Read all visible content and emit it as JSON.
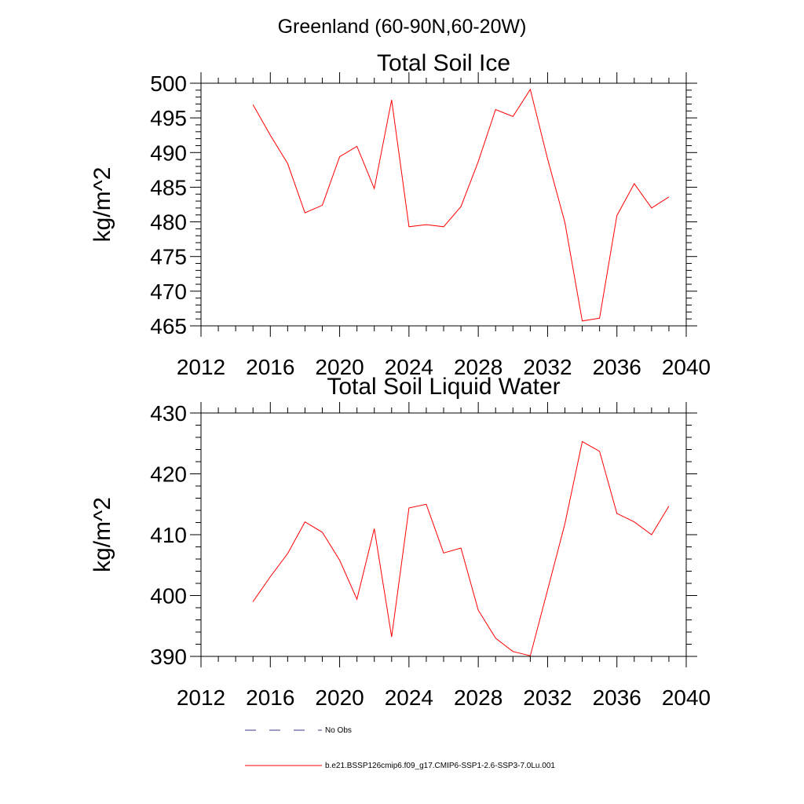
{
  "suptitle": "Greenland (60-90N,60-20W)",
  "legend": {
    "entries": [
      {
        "label": "No Obs",
        "color": "#3a3a8c",
        "dash": "dashed"
      },
      {
        "label": "b.e21.BSSP126cmip6.f09_g17.CMIP6-SSP1-2.6-SSP3-7.0Lu.001",
        "color": "#ff0000",
        "dash": "solid"
      }
    ]
  },
  "chart_data": [
    {
      "type": "line",
      "title": "Total Soil Ice",
      "xlabel": "",
      "ylabel": "kg/m^2",
      "xlim": [
        2012,
        2040
      ],
      "ylim": [
        465,
        500
      ],
      "xticks": [
        2012,
        2016,
        2020,
        2024,
        2028,
        2032,
        2036,
        2040
      ],
      "yticks": [
        465,
        470,
        475,
        480,
        485,
        490,
        495,
        500
      ],
      "grid": false,
      "series": [
        {
          "name": "b.e21.BSSP126cmip6.f09_g17.CMIP6-SSP1-2.6-SSP3-7.0Lu.001",
          "color": "#ff0000",
          "x": [
            2015,
            2016,
            2017,
            2018,
            2019,
            2020,
            2021,
            2022,
            2023,
            2024,
            2025,
            2026,
            2027,
            2028,
            2029,
            2030,
            2031,
            2032,
            2033,
            2034,
            2035,
            2036,
            2037,
            2038,
            2039
          ],
          "values": [
            496.9,
            492.5,
            488.4,
            481.3,
            482.4,
            489.4,
            490.9,
            484.8,
            497.6,
            479.3,
            479.6,
            479.3,
            482.2,
            488.7,
            496.2,
            495.2,
            499.1,
            489.1,
            479.9,
            465.7,
            466.1,
            480.9,
            485.5,
            482.0,
            483.6
          ]
        }
      ]
    },
    {
      "type": "line",
      "title": "Total Soil Liquid Water",
      "xlabel": "",
      "ylabel": "kg/m^2",
      "xlim": [
        2012,
        2040
      ],
      "ylim": [
        390,
        430
      ],
      "xticks": [
        2012,
        2016,
        2020,
        2024,
        2028,
        2032,
        2036,
        2040
      ],
      "yticks": [
        390,
        400,
        410,
        420,
        430
      ],
      "grid": false,
      "series": [
        {
          "name": "b.e21.BSSP126cmip6.f09_g17.CMIP6-SSP1-2.6-SSP3-7.0Lu.001",
          "color": "#ff0000",
          "x": [
            2015,
            2016,
            2017,
            2018,
            2019,
            2020,
            2021,
            2022,
            2023,
            2024,
            2025,
            2026,
            2027,
            2028,
            2029,
            2030,
            2031,
            2032,
            2033,
            2034,
            2035,
            2036,
            2037,
            2038,
            2039
          ],
          "values": [
            399.0,
            403.1,
            406.9,
            412.1,
            410.4,
            405.8,
            399.4,
            411.0,
            393.2,
            414.4,
            415.0,
            407.0,
            407.8,
            397.6,
            393.0,
            390.8,
            390.1,
            400.9,
            411.8,
            425.3,
            423.7,
            413.5,
            412.1,
            410.0,
            414.7
          ]
        }
      ]
    }
  ]
}
